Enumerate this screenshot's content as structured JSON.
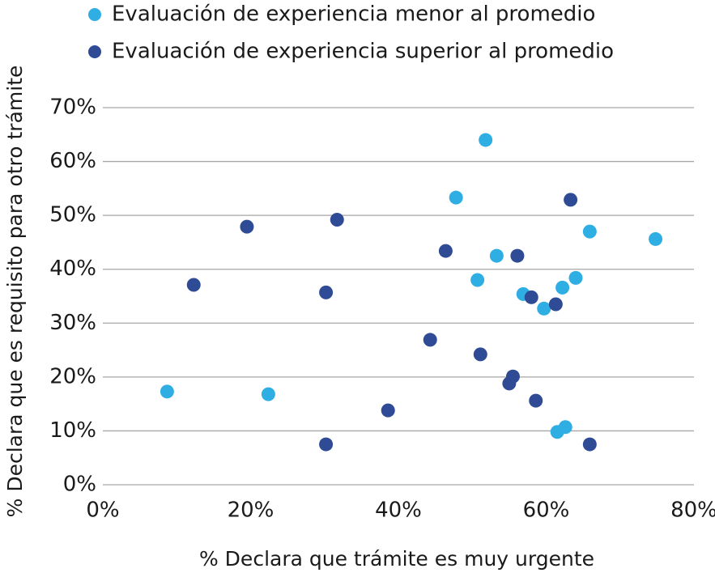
{
  "chart_data": {
    "type": "scatter",
    "x_label": "% Declara que trámite es muy urgente",
    "y_label": "% Declara que es requisito para otro trámite",
    "xlim": [
      0,
      80
    ],
    "xticks": [
      {
        "value": 0,
        "label": "0%"
      },
      {
        "value": 20,
        "label": "20%"
      },
      {
        "value": 40,
        "label": "40%"
      },
      {
        "value": 60,
        "label": "60%"
      },
      {
        "value": 80,
        "label": "80%"
      }
    ],
    "ylim": [
      0,
      70
    ],
    "yticks": [
      {
        "value": 0,
        "label": "0%"
      },
      {
        "value": 10,
        "label": "10%"
      },
      {
        "value": 20,
        "label": "20%"
      },
      {
        "value": 30,
        "label": "30%"
      },
      {
        "value": 40,
        "label": "40%"
      },
      {
        "value": 50,
        "label": "50%"
      },
      {
        "value": 60,
        "label": "60%"
      },
      {
        "value": 70,
        "label": "70%"
      }
    ],
    "grid": true,
    "series": [
      {
        "name": "Evaluación de experiencia menor al promedio",
        "color": "#2eaee3",
        "x": [
          8.7,
          22.4,
          47.8,
          51.8,
          50.7,
          53.3,
          56.9,
          59.7,
          62.2,
          64.0,
          65.9,
          74.8,
          61.5,
          62.6
        ],
        "values": [
          17.3,
          16.8,
          53.3,
          64.0,
          38.0,
          42.5,
          35.4,
          32.7,
          36.6,
          38.4,
          47.0,
          45.6,
          9.8,
          10.7
        ]
      },
      {
        "name": "Evaluación de experiencia superior al promedio",
        "color": "#2f4b95",
        "x": [
          12.3,
          19.5,
          30.2,
          31.7,
          30.2,
          38.6,
          44.3,
          46.4,
          51.1,
          56.1,
          55.5,
          55.0,
          58.0,
          58.6,
          61.3,
          63.3,
          65.9
        ],
        "values": [
          37.1,
          47.9,
          35.7,
          49.2,
          7.5,
          13.8,
          26.9,
          43.4,
          24.2,
          42.5,
          20.1,
          18.8,
          34.8,
          15.6,
          33.5,
          52.9,
          7.5
        ]
      }
    ]
  }
}
